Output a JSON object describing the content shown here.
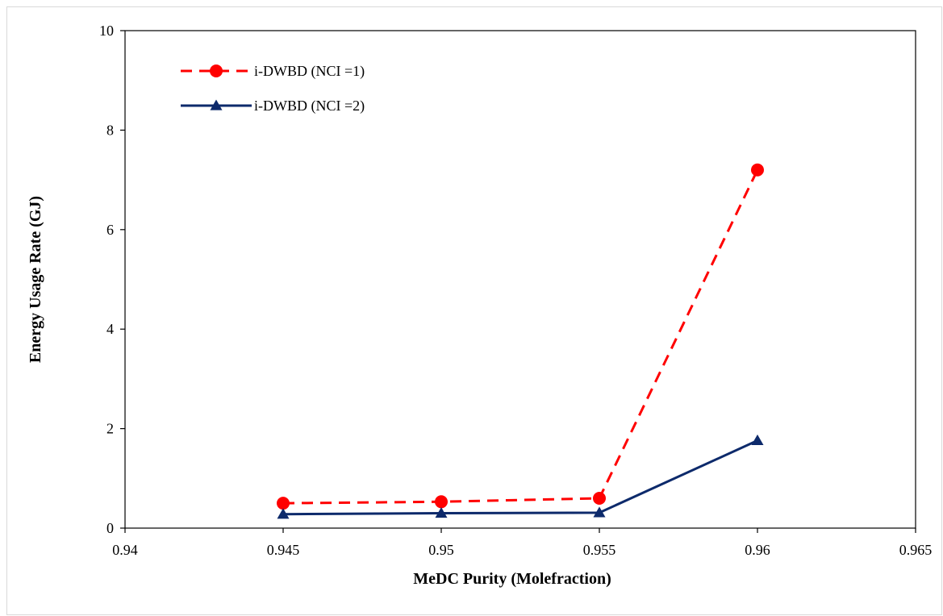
{
  "chart_data": {
    "type": "line",
    "xlabel": "MeDC Purity (Molefraction)",
    "ylabel": "Energy Usage Rate (GJ)",
    "xlim": [
      0.94,
      0.965
    ],
    "ylim": [
      0,
      10
    ],
    "xticks": [
      "0.94",
      "0.945",
      "0.95",
      "0.955",
      "0.96",
      "0.965"
    ],
    "xtick_values": [
      0.94,
      0.945,
      0.95,
      0.955,
      0.96,
      0.965
    ],
    "yticks": [
      "0",
      "2",
      "4",
      "6",
      "8",
      "10"
    ],
    "ytick_values": [
      0,
      2,
      4,
      6,
      8,
      10
    ],
    "grid": false,
    "legend_position": "top-left",
    "series": [
      {
        "name": "i-DWBD (NCI =1)",
        "x": [
          0.945,
          0.95,
          0.955,
          0.96
        ],
        "y": [
          0.5,
          0.53,
          0.6,
          7.2
        ],
        "color": "#ff0000",
        "line_style": "dashed",
        "marker": "circle"
      },
      {
        "name": "i-DWBD (NCI =2)",
        "x": [
          0.945,
          0.95,
          0.955,
          0.96
        ],
        "y": [
          0.28,
          0.3,
          0.31,
          1.76
        ],
        "color": "#0d2a6b",
        "line_style": "solid",
        "marker": "triangle"
      }
    ]
  }
}
